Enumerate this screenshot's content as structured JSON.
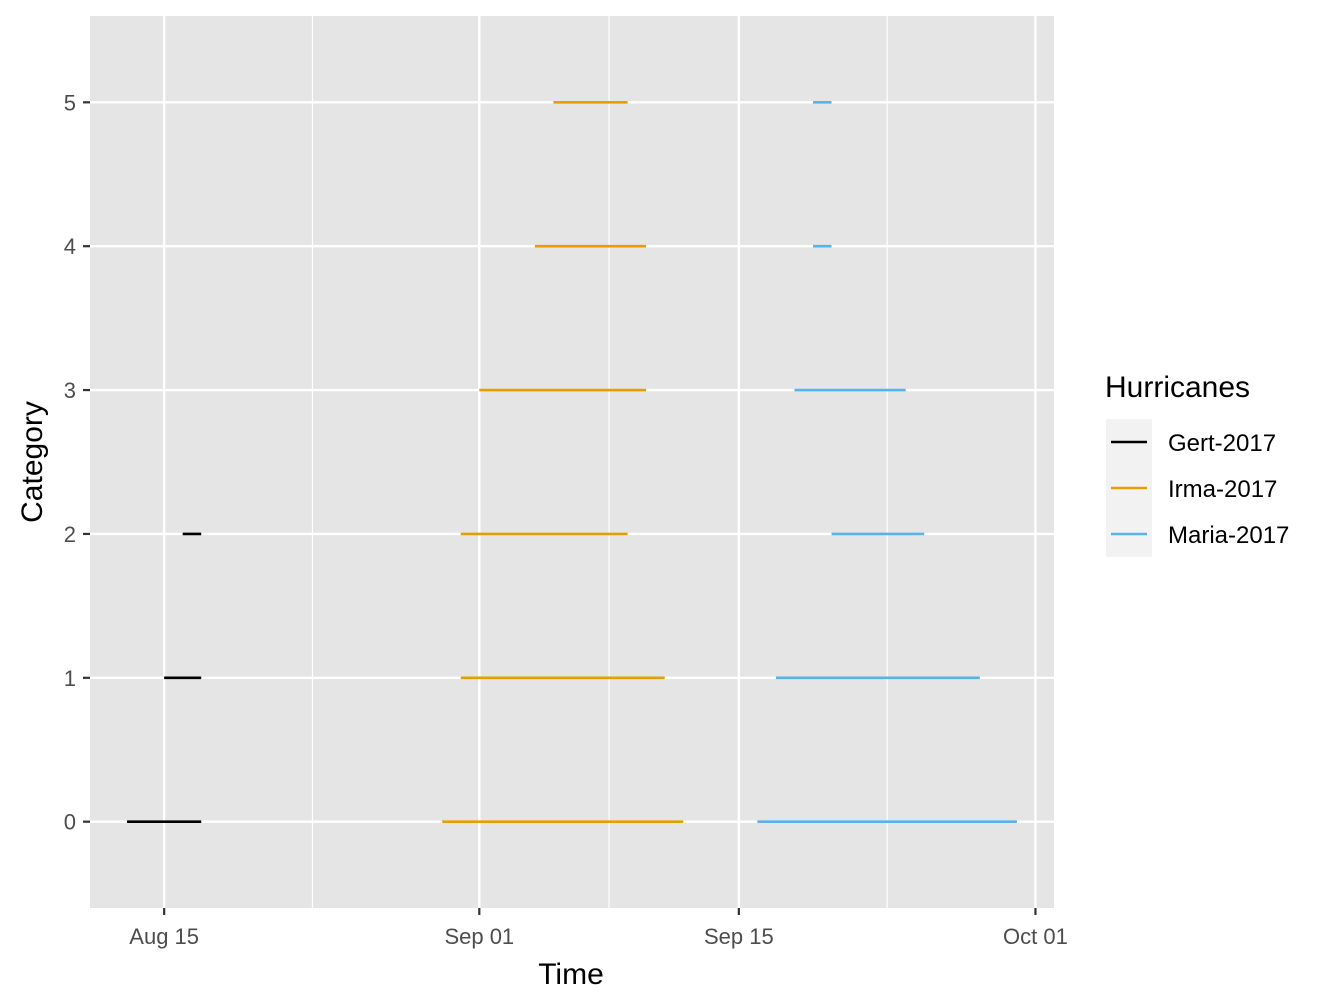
{
  "chart_data": {
    "type": "line",
    "xlabel": "Time",
    "ylabel": "Category",
    "x_axis_type": "date",
    "xlim": [
      "2017-08-11",
      "2017-10-02"
    ],
    "ylim": [
      -0.6,
      5.6
    ],
    "x_ticks": [
      {
        "date": "2017-08-15",
        "label": "Aug 15"
      },
      {
        "date": "2017-09-01",
        "label": "Sep 01"
      },
      {
        "date": "2017-09-15",
        "label": "Sep 15"
      },
      {
        "date": "2017-10-01",
        "label": "Oct 01"
      }
    ],
    "x_minor_ticks": [
      "2017-08-23",
      "2017-09-08",
      "2017-09-23"
    ],
    "y_ticks": [
      0,
      1,
      2,
      3,
      4,
      5
    ],
    "grid": true,
    "legend": {
      "title": "Hurricanes",
      "position": "right"
    },
    "series": [
      {
        "name": "Gert-2017",
        "color": "#000000",
        "segments": [
          {
            "category": 0,
            "start": "2017-08-13",
            "end": "2017-08-17"
          },
          {
            "category": 1,
            "start": "2017-08-15",
            "end": "2017-08-17"
          },
          {
            "category": 2,
            "start": "2017-08-16",
            "end": "2017-08-17"
          }
        ]
      },
      {
        "name": "Irma-2017",
        "color": "#E69F00",
        "segments": [
          {
            "category": 0,
            "start": "2017-08-30",
            "end": "2017-09-12"
          },
          {
            "category": 1,
            "start": "2017-08-31",
            "end": "2017-09-11"
          },
          {
            "category": 2,
            "start": "2017-08-31",
            "end": "2017-09-09"
          },
          {
            "category": 3,
            "start": "2017-09-01",
            "end": "2017-09-10"
          },
          {
            "category": 4,
            "start": "2017-09-04",
            "end": "2017-09-10"
          },
          {
            "category": 5,
            "start": "2017-09-05",
            "end": "2017-09-09"
          }
        ]
      },
      {
        "name": "Maria-2017",
        "color": "#56B4E9",
        "segments": [
          {
            "category": 0,
            "start": "2017-09-16",
            "end": "2017-09-30"
          },
          {
            "category": 1,
            "start": "2017-09-17",
            "end": "2017-09-28"
          },
          {
            "category": 2,
            "start": "2017-09-20",
            "end": "2017-09-25"
          },
          {
            "category": 3,
            "start": "2017-09-18",
            "end": "2017-09-24"
          },
          {
            "category": 4,
            "start": "2017-09-19",
            "end": "2017-09-20"
          },
          {
            "category": 5,
            "start": "2017-09-19",
            "end": "2017-09-20"
          }
        ]
      }
    ]
  }
}
